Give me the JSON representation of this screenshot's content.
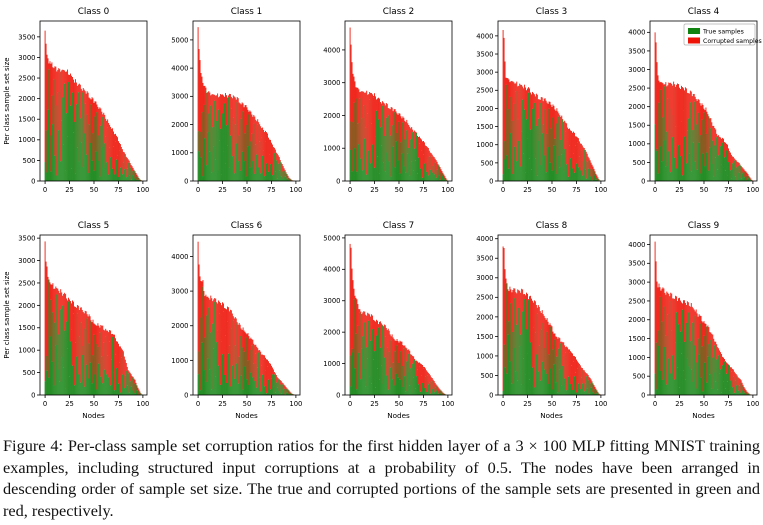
{
  "figure": {
    "ylabel": "Per class sample set size",
    "xlabel": "Nodes",
    "xticks": [
      0,
      25,
      50,
      75,
      100
    ],
    "xlim": [
      -5.2,
      104.2
    ],
    "colors": {
      "true_samples": "#108210",
      "corrupted_samples": "#ee1307",
      "spine": "#000000",
      "legend_border": "#b0b0b0",
      "background": "#ffffff"
    },
    "legend": {
      "host_subplot": "Class 4",
      "position": "upper right",
      "items": [
        {
          "label": "True samples",
          "color": "#108210"
        },
        {
          "label": "Corrupted samples",
          "color": "#ee1307"
        }
      ]
    }
  },
  "chart_data": [
    {
      "type": "bar",
      "stacked": true,
      "title": "Class 0",
      "n_nodes": 100,
      "legend": false,
      "peak": 3700,
      "yticks": [
        0,
        500,
        1000,
        1500,
        2000,
        2500,
        3000,
        3500
      ],
      "envelope": [
        [
          0,
          3700
        ],
        [
          1,
          3350
        ],
        [
          2,
          3050
        ],
        [
          3,
          2950
        ],
        [
          5,
          2850
        ],
        [
          8,
          2780
        ],
        [
          14,
          2700
        ],
        [
          20,
          2680
        ],
        [
          24,
          2650
        ],
        [
          30,
          2430
        ],
        [
          36,
          2300
        ],
        [
          42,
          2150
        ],
        [
          48,
          2000
        ],
        [
          54,
          1820
        ],
        [
          60,
          1620
        ],
        [
          66,
          1380
        ],
        [
          72,
          1120
        ],
        [
          76,
          950
        ],
        [
          80,
          720
        ],
        [
          84,
          560
        ],
        [
          88,
          400
        ],
        [
          92,
          230
        ],
        [
          95,
          110
        ],
        [
          97,
          40
        ],
        [
          99,
          10
        ]
      ]
    },
    {
      "type": "bar",
      "stacked": true,
      "title": "Class 1",
      "n_nodes": 100,
      "legend": false,
      "peak": 5400,
      "yticks": [
        0,
        1000,
        2000,
        3000,
        4000,
        5000
      ],
      "envelope": [
        [
          0,
          5400
        ],
        [
          1,
          4750
        ],
        [
          2,
          4200
        ],
        [
          3,
          3800
        ],
        [
          4,
          3600
        ],
        [
          6,
          3400
        ],
        [
          9,
          3200
        ],
        [
          13,
          3080
        ],
        [
          16,
          3050
        ],
        [
          34,
          3030
        ],
        [
          38,
          2950
        ],
        [
          42,
          2850
        ],
        [
          46,
          2700
        ],
        [
          50,
          2600
        ],
        [
          54,
          2400
        ],
        [
          58,
          2250
        ],
        [
          62,
          2100
        ],
        [
          66,
          1850
        ],
        [
          70,
          1700
        ],
        [
          74,
          1450
        ],
        [
          78,
          1150
        ],
        [
          82,
          900
        ],
        [
          86,
          600
        ],
        [
          90,
          300
        ],
        [
          93,
          120
        ],
        [
          96,
          30
        ],
        [
          99,
          0
        ]
      ]
    },
    {
      "type": "bar",
      "stacked": true,
      "title": "Class 2",
      "n_nodes": 100,
      "legend": false,
      "peak": 4650,
      "yticks": [
        0,
        1000,
        2000,
        3000,
        4000
      ],
      "envelope": [
        [
          0,
          4650
        ],
        [
          1,
          4050
        ],
        [
          2,
          3650
        ],
        [
          3,
          3300
        ],
        [
          5,
          3000
        ],
        [
          8,
          2800
        ],
        [
          11,
          2730
        ],
        [
          18,
          2700
        ],
        [
          24,
          2640
        ],
        [
          28,
          2520
        ],
        [
          34,
          2380
        ],
        [
          40,
          2260
        ],
        [
          46,
          2140
        ],
        [
          52,
          1980
        ],
        [
          58,
          1820
        ],
        [
          62,
          1640
        ],
        [
          68,
          1440
        ],
        [
          72,
          1320
        ],
        [
          76,
          1150
        ],
        [
          80,
          980
        ],
        [
          84,
          800
        ],
        [
          88,
          620
        ],
        [
          92,
          420
        ],
        [
          95,
          250
        ],
        [
          98,
          90
        ],
        [
          99,
          40
        ]
      ]
    },
    {
      "type": "bar",
      "stacked": true,
      "title": "Class 3",
      "n_nodes": 100,
      "legend": false,
      "peak": 4200,
      "yticks": [
        0,
        500,
        1000,
        1500,
        2000,
        2500,
        3000,
        3500,
        4000
      ],
      "envelope": [
        [
          0,
          4200
        ],
        [
          1,
          3900
        ],
        [
          2,
          3250
        ],
        [
          3,
          2920
        ],
        [
          5,
          2790
        ],
        [
          10,
          2730
        ],
        [
          14,
          2690
        ],
        [
          20,
          2610
        ],
        [
          26,
          2540
        ],
        [
          30,
          2420
        ],
        [
          36,
          2310
        ],
        [
          42,
          2240
        ],
        [
          48,
          2130
        ],
        [
          52,
          2040
        ],
        [
          56,
          1930
        ],
        [
          60,
          1760
        ],
        [
          64,
          1580
        ],
        [
          68,
          1440
        ],
        [
          72,
          1330
        ],
        [
          76,
          1190
        ],
        [
          80,
          1020
        ],
        [
          84,
          840
        ],
        [
          88,
          620
        ],
        [
          92,
          400
        ],
        [
          95,
          200
        ],
        [
          98,
          50
        ],
        [
          99,
          20
        ]
      ]
    },
    {
      "type": "bar",
      "stacked": true,
      "title": "Class 4",
      "n_nodes": 100,
      "legend": true,
      "peak": 4100,
      "yticks": [
        0,
        500,
        1000,
        1500,
        2000,
        2500,
        3000,
        3500,
        4000
      ],
      "envelope": [
        [
          0,
          4100
        ],
        [
          1,
          3750
        ],
        [
          2,
          3150
        ],
        [
          3,
          2820
        ],
        [
          5,
          2660
        ],
        [
          10,
          2610
        ],
        [
          16,
          2620
        ],
        [
          22,
          2590
        ],
        [
          26,
          2540
        ],
        [
          32,
          2440
        ],
        [
          36,
          2390
        ],
        [
          42,
          2230
        ],
        [
          46,
          2100
        ],
        [
          52,
          1930
        ],
        [
          56,
          1720
        ],
        [
          60,
          1450
        ],
        [
          64,
          1250
        ],
        [
          70,
          1110
        ],
        [
          74,
          950
        ],
        [
          78,
          700
        ],
        [
          82,
          560
        ],
        [
          86,
          480
        ],
        [
          90,
          340
        ],
        [
          94,
          220
        ],
        [
          97,
          100
        ],
        [
          99,
          30
        ]
      ]
    },
    {
      "type": "bar",
      "stacked": true,
      "title": "Class 5",
      "n_nodes": 100,
      "legend": false,
      "peak": 3400,
      "yticks": [
        0,
        500,
        1000,
        1500,
        2000,
        2500,
        3000,
        3500
      ],
      "envelope": [
        [
          0,
          3400
        ],
        [
          1,
          3020
        ],
        [
          2,
          2870
        ],
        [
          3,
          2620
        ],
        [
          5,
          2510
        ],
        [
          10,
          2410
        ],
        [
          14,
          2330
        ],
        [
          20,
          2240
        ],
        [
          26,
          2090
        ],
        [
          32,
          1990
        ],
        [
          38,
          1890
        ],
        [
          44,
          1790
        ],
        [
          50,
          1610
        ],
        [
          56,
          1540
        ],
        [
          62,
          1470
        ],
        [
          68,
          1390
        ],
        [
          72,
          1280
        ],
        [
          76,
          1090
        ],
        [
          80,
          950
        ],
        [
          82,
          780
        ],
        [
          85,
          560
        ],
        [
          88,
          460
        ],
        [
          92,
          330
        ],
        [
          95,
          160
        ],
        [
          98,
          40
        ],
        [
          99,
          15
        ]
      ]
    },
    {
      "type": "bar",
      "stacked": true,
      "title": "Class 6",
      "n_nodes": 100,
      "legend": false,
      "peak": 4400,
      "yticks": [
        0,
        1000,
        2000,
        3000,
        4000
      ],
      "envelope": [
        [
          0,
          4400
        ],
        [
          1,
          3750
        ],
        [
          2,
          3420
        ],
        [
          3,
          3320
        ],
        [
          5,
          3260
        ],
        [
          7,
          2900
        ],
        [
          9,
          2820
        ],
        [
          14,
          2790
        ],
        [
          20,
          2710
        ],
        [
          26,
          2590
        ],
        [
          32,
          2470
        ],
        [
          36,
          2300
        ],
        [
          40,
          2110
        ],
        [
          44,
          1960
        ],
        [
          50,
          1790
        ],
        [
          54,
          1620
        ],
        [
          60,
          1410
        ],
        [
          64,
          1220
        ],
        [
          70,
          1060
        ],
        [
          74,
          880
        ],
        [
          77,
          720
        ],
        [
          81,
          520
        ],
        [
          85,
          400
        ],
        [
          89,
          260
        ],
        [
          93,
          130
        ],
        [
          96,
          40
        ],
        [
          99,
          5
        ]
      ]
    },
    {
      "type": "bar",
      "stacked": true,
      "title": "Class 7",
      "n_nodes": 100,
      "legend": false,
      "peak": 4850,
      "yticks": [
        0,
        1000,
        2000,
        3000,
        4000,
        5000
      ],
      "envelope": [
        [
          0,
          4850
        ],
        [
          1,
          4700
        ],
        [
          2,
          3950
        ],
        [
          3,
          3750
        ],
        [
          5,
          3120
        ],
        [
          7,
          3020
        ],
        [
          10,
          2660
        ],
        [
          16,
          2600
        ],
        [
          20,
          2560
        ],
        [
          25,
          2420
        ],
        [
          28,
          2320
        ],
        [
          33,
          2260
        ],
        [
          38,
          2110
        ],
        [
          42,
          1920
        ],
        [
          46,
          1770
        ],
        [
          50,
          1710
        ],
        [
          55,
          1610
        ],
        [
          60,
          1420
        ],
        [
          64,
          1230
        ],
        [
          68,
          1090
        ],
        [
          72,
          980
        ],
        [
          76,
          880
        ],
        [
          80,
          710
        ],
        [
          84,
          530
        ],
        [
          88,
          340
        ],
        [
          92,
          180
        ],
        [
          95,
          80
        ],
        [
          98,
          10
        ],
        [
          99,
          0
        ]
      ]
    },
    {
      "type": "bar",
      "stacked": true,
      "title": "Class 8",
      "n_nodes": 100,
      "legend": false,
      "peak": 3900,
      "yticks": [
        0,
        500,
        1000,
        1500,
        2000,
        2500,
        3000,
        3500,
        4000
      ],
      "envelope": [
        [
          0,
          3900
        ],
        [
          1,
          3820
        ],
        [
          2,
          3180
        ],
        [
          3,
          2960
        ],
        [
          5,
          2710
        ],
        [
          10,
          2690
        ],
        [
          16,
          2660
        ],
        [
          22,
          2640
        ],
        [
          26,
          2510
        ],
        [
          30,
          2440
        ],
        [
          34,
          2310
        ],
        [
          38,
          2190
        ],
        [
          42,
          2050
        ],
        [
          46,
          1880
        ],
        [
          50,
          1710
        ],
        [
          54,
          1520
        ],
        [
          58,
          1420
        ],
        [
          62,
          1310
        ],
        [
          66,
          1210
        ],
        [
          70,
          1060
        ],
        [
          74,
          960
        ],
        [
          78,
          790
        ],
        [
          82,
          640
        ],
        [
          86,
          540
        ],
        [
          89,
          440
        ],
        [
          92,
          300
        ],
        [
          95,
          160
        ],
        [
          98,
          40
        ],
        [
          99,
          20
        ]
      ]
    },
    {
      "type": "bar",
      "stacked": true,
      "title": "Class 9",
      "n_nodes": 100,
      "legend": false,
      "peak": 4050,
      "yticks": [
        0,
        500,
        1000,
        1500,
        2000,
        2500,
        3000,
        3500,
        4000
      ],
      "envelope": [
        [
          0,
          4050
        ],
        [
          1,
          3520
        ],
        [
          2,
          3020
        ],
        [
          3,
          2910
        ],
        [
          5,
          2860
        ],
        [
          8,
          2810
        ],
        [
          12,
          2710
        ],
        [
          16,
          2650
        ],
        [
          20,
          2610
        ],
        [
          26,
          2500
        ],
        [
          30,
          2460
        ],
        [
          36,
          2410
        ],
        [
          40,
          2310
        ],
        [
          44,
          2130
        ],
        [
          48,
          2010
        ],
        [
          52,
          1900
        ],
        [
          55,
          1760
        ],
        [
          58,
          1610
        ],
        [
          62,
          1410
        ],
        [
          65,
          1210
        ],
        [
          68,
          1060
        ],
        [
          72,
          910
        ],
        [
          75,
          810
        ],
        [
          80,
          660
        ],
        [
          84,
          510
        ],
        [
          88,
          390
        ],
        [
          91,
          210
        ],
        [
          94,
          90
        ],
        [
          97,
          20
        ],
        [
          99,
          0
        ]
      ]
    }
  ],
  "render": {
    "green_fractions": [
      0.28,
      0.82,
      0.15,
      0.58,
      0.95,
      0.38,
      0.08,
      0.72,
      0.5,
      0.9,
      0.22,
      0.66,
      0.05,
      0.8,
      0.45,
      0.97,
      0.18,
      0.55,
      0.75,
      0.33,
      0.88,
      0.1,
      0.62,
      0.4,
      0.93,
      0.25,
      0.7,
      0.12,
      0.85,
      0.48,
      0.6,
      0.07,
      0.78,
      0.35,
      0.92,
      0.2,
      0.65,
      0.42,
      0.98,
      0.15,
      0.52,
      0.86,
      0.3,
      0.74,
      0.09,
      0.68,
      0.46,
      0.94,
      0.24,
      0.58,
      0.13,
      0.81,
      0.37,
      0.9,
      0.27,
      0.63,
      0.06,
      0.76,
      0.49,
      0.96,
      0.19,
      0.57,
      0.71,
      0.31,
      0.87,
      0.11,
      0.6,
      0.44,
      0.91,
      0.23,
      0.69,
      0.14,
      0.83,
      0.47,
      0.59,
      0.1,
      0.79,
      0.36,
      0.95,
      0.21,
      0.64,
      0.41,
      0.99,
      0.16,
      0.53,
      0.84,
      0.29,
      0.73,
      0.08,
      0.67,
      0.45,
      0.93,
      0.26,
      0.56,
      0.17,
      0.8,
      0.39,
      0.89,
      0.32,
      0.61
    ],
    "frac_rotation": [
      0,
      7,
      14,
      21,
      28,
      35,
      42,
      49,
      56,
      63
    ],
    "spike_damp_nodes": 3,
    "spike_damp_factor": 0.45,
    "jitter": 0.06
  },
  "caption": {
    "text": "Figure 4: Per-class sample set corruption ratios for the first hidden layer of a 3 × 100 MLP fitting MNIST training examples, including structured input corruptions at a probability of 0.5. The nodes have been arranged in descending order of sample set size. The true and corrupted portions of the sample sets are presented in green and red, respectively."
  }
}
